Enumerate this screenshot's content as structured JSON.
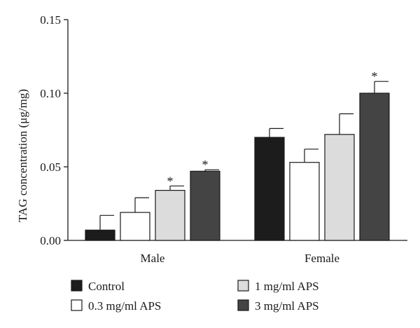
{
  "chart_data": {
    "type": "bar",
    "title": "",
    "xlabel": "",
    "ylabel": "TAG concentration (μg/mg)",
    "ylim": [
      0,
      0.15
    ],
    "yticks": [
      "0.00",
      "0.05",
      "0.10",
      "0.15"
    ],
    "ytick_values": [
      0,
      0.05,
      0.1,
      0.15
    ],
    "categories": [
      "Male",
      "Female"
    ],
    "series": [
      {
        "name": "Control",
        "color": "#1c1c1c",
        "values": [
          0.007,
          0.07
        ],
        "errors": [
          0.01,
          0.006
        ],
        "marks": [
          "",
          ""
        ]
      },
      {
        "name": "0.3 mg/ml APS",
        "color": "#ffffff",
        "values": [
          0.019,
          0.053
        ],
        "errors": [
          0.01,
          0.009
        ],
        "marks": [
          "",
          ""
        ]
      },
      {
        "name": "1 mg/ml APS",
        "color": "#dcdcdc",
        "values": [
          0.034,
          0.072
        ],
        "errors": [
          0.003,
          0.014
        ],
        "marks": [
          "*",
          ""
        ]
      },
      {
        "name": "3 mg/ml APS",
        "color": "#444444",
        "values": [
          0.047,
          0.1
        ],
        "errors": [
          0.001,
          0.008
        ],
        "marks": [
          "*",
          "*"
        ]
      }
    ],
    "legend_position": "bottom",
    "grid": false
  }
}
